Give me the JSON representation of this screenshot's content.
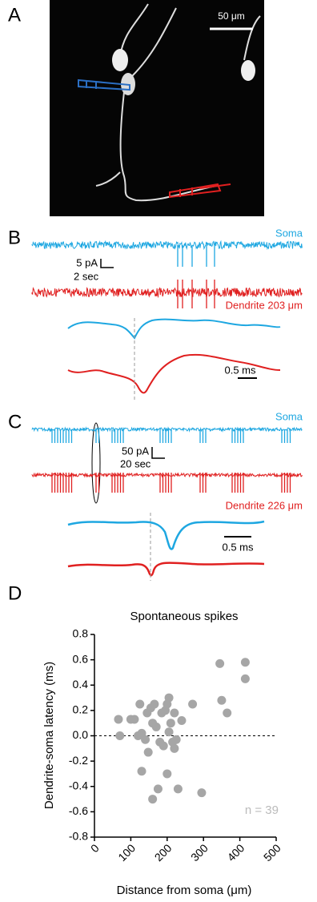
{
  "panel_labels": [
    "A",
    "B",
    "C",
    "D"
  ],
  "panel_a": {
    "scale_label": "50 μm"
  },
  "panel_b": {
    "soma_label": "Soma",
    "dendrite_label": "Dendrite 203 μm",
    "scale_y": "5 pA",
    "scale_x": "2 sec",
    "waveform_scale": "0.5 ms"
  },
  "panel_c": {
    "soma_label": "Soma",
    "dendrite_label": "Dendrite 226 μm",
    "scale_y": "50 pA",
    "scale_x": "20 sec",
    "waveform_scale": "0.5 ms"
  },
  "chart_data": {
    "type": "scatter",
    "title": "Spontaneous spikes",
    "x_label": "Distance from soma (μm)",
    "y_label": "Dendrite-soma latency (ms)",
    "annotation": "n = 39",
    "color": "#a6a6a6",
    "x": [
      66,
      70,
      100,
      110,
      125,
      130,
      120,
      140,
      145,
      148,
      155,
      160,
      160,
      165,
      170,
      175,
      180,
      185,
      190,
      195,
      200,
      200,
      205,
      205,
      210,
      215,
      220,
      220,
      225,
      230,
      240,
      270,
      295,
      345,
      350,
      365,
      415,
      415,
      130
    ],
    "y": [
      0.13,
      0.0,
      0.13,
      0.13,
      0.25,
      -0.28,
      0.0,
      -0.03,
      0.18,
      -0.13,
      0.22,
      -0.5,
      0.1,
      0.25,
      0.07,
      -0.42,
      -0.05,
      0.18,
      -0.08,
      0.2,
      0.25,
      -0.3,
      0.3,
      0.03,
      0.1,
      -0.05,
      0.18,
      -0.1,
      -0.03,
      -0.42,
      0.12,
      0.25,
      -0.45,
      0.57,
      0.28,
      0.18,
      0.58,
      0.45,
      0.02
    ],
    "xlim": [
      0,
      500
    ],
    "xticks": [
      0,
      100,
      200,
      300,
      400,
      500
    ],
    "ylim": [
      -0.8,
      0.8
    ],
    "yticks": [
      -0.8,
      -0.6,
      -0.4,
      -0.2,
      {
        "value": 0,
        "label": "0.0"
      },
      0.2,
      0.4,
      0.6,
      0.8
    ],
    "zero_line": true
  }
}
